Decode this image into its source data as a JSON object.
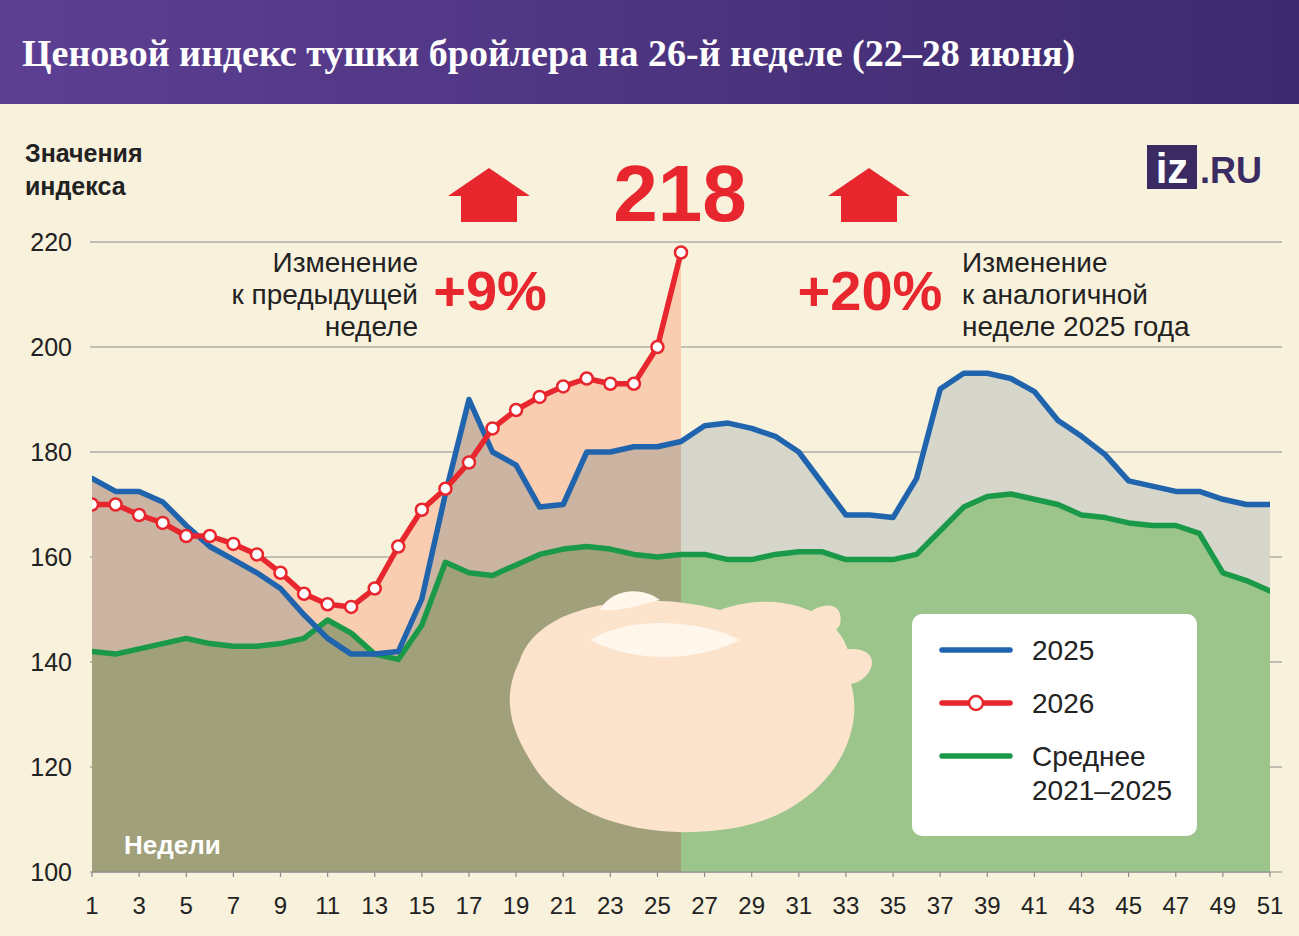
{
  "chart_data": {
    "type": "line",
    "title": "Ценовой индекс тушки бройлера на 26-й неделе (22–28 июня)",
    "ylabel": "Значения индекса",
    "xlabel": "Недели",
    "x": [
      1,
      2,
      3,
      4,
      5,
      6,
      7,
      8,
      9,
      10,
      11,
      12,
      13,
      14,
      15,
      16,
      17,
      18,
      19,
      20,
      21,
      22,
      23,
      24,
      25,
      26,
      27,
      28,
      29,
      30,
      31,
      32,
      33,
      34,
      35,
      36,
      37,
      38,
      39,
      40,
      41,
      42,
      43,
      44,
      45,
      46,
      47,
      48,
      49,
      50,
      51
    ],
    "xlim": [
      1,
      51
    ],
    "xticks": [
      1,
      3,
      5,
      7,
      9,
      11,
      13,
      15,
      17,
      19,
      21,
      23,
      25,
      27,
      29,
      31,
      33,
      35,
      37,
      39,
      41,
      43,
      45,
      47,
      49,
      51
    ],
    "ylim": [
      100,
      220
    ],
    "yticks": [
      100,
      120,
      140,
      160,
      180,
      200,
      220
    ],
    "grid": true,
    "legend": "lower right",
    "series": [
      {
        "name": "2025",
        "color": "#1f64ad",
        "values": [
          175,
          172.5,
          172.5,
          170.5,
          166,
          162,
          159.5,
          157,
          154,
          149,
          144.5,
          141.5,
          141.5,
          142,
          152,
          172,
          190,
          180,
          177.5,
          169.5,
          170,
          180,
          180,
          181,
          181,
          182,
          185,
          185.5,
          184.5,
          183,
          180,
          174,
          168,
          168,
          167.5,
          175,
          192,
          195,
          195,
          194,
          191.5,
          186,
          183,
          179.5,
          174.5,
          173.5,
          172.5,
          172.5,
          171,
          170,
          170
        ]
      },
      {
        "name": "2026",
        "color": "#e8262d",
        "marker": "circle",
        "values": [
          170,
          170,
          168,
          166.5,
          164,
          164,
          162.5,
          160.5,
          157,
          153,
          151,
          150.5,
          154,
          162,
          169,
          173,
          178,
          184.5,
          188,
          190.5,
          192.5,
          194,
          193,
          193,
          200,
          218,
          null,
          null,
          null,
          null,
          null,
          null,
          null,
          null,
          null,
          null,
          null,
          null,
          null,
          null,
          null,
          null,
          null,
          null,
          null,
          null,
          null,
          null,
          null,
          null,
          null
        ]
      },
      {
        "name": "Среднее 2021–2025",
        "color": "#1a9a48",
        "values": [
          142,
          141.5,
          142.5,
          143.5,
          144.5,
          143.5,
          143,
          143,
          143.5,
          144.5,
          148,
          145.5,
          141.5,
          140.5,
          147,
          159,
          157,
          156.5,
          158.5,
          160.5,
          161.5,
          162,
          161.5,
          160.5,
          160,
          160.5,
          160.5,
          159.5,
          159.5,
          160.5,
          161,
          161,
          159.5,
          159.5,
          159.5,
          160.5,
          165,
          169.5,
          171.5,
          172,
          171,
          170,
          168,
          167.5,
          166.5,
          166,
          166,
          164.5,
          157,
          155.5,
          153.5
        ]
      }
    ],
    "annotations": [
      {
        "text": "218"
      },
      {
        "text": "+9%",
        "lines": [
          "Изменение",
          "к предыдущей",
          "неделе"
        ]
      },
      {
        "text": "+20%",
        "lines": [
          "Изменение",
          "к аналогичной",
          "неделе 2025 года"
        ]
      }
    ],
    "logo": "iz.RU"
  }
}
